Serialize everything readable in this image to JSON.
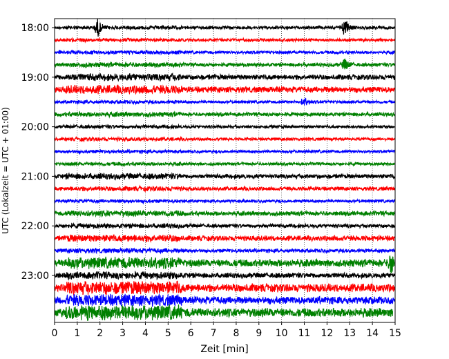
{
  "chart_data": {
    "type": "line",
    "subtype": "helicorder",
    "title": "",
    "xlabel": "Zeit  [min]",
    "ylabel": "UTC (Lokalzeit = UTC + 01:00)",
    "xlim": [
      0,
      15
    ],
    "x_ticks": [
      0,
      1,
      2,
      3,
      4,
      5,
      6,
      7,
      8,
      9,
      10,
      11,
      12,
      13,
      14,
      15
    ],
    "x_tick_labels": [
      "0",
      "1",
      "2",
      "3",
      "4",
      "5",
      "6",
      "7",
      "8",
      "9",
      "10",
      "11",
      "12",
      "13",
      "14",
      "15"
    ],
    "vertical_grid": "dotted",
    "row_interval_minutes": 15,
    "row_count": 24,
    "y_tick_labels": [
      "18:00",
      "19:00",
      "20:00",
      "21:00",
      "22:00",
      "23:00"
    ],
    "y_tick_rows": [
      0,
      4,
      8,
      12,
      16,
      20
    ],
    "trace_colors": [
      "#000000",
      "#ff0000",
      "#0000ff",
      "#008000"
    ],
    "trace_amplitudes": [
      0.2,
      0.2,
      0.2,
      0.25,
      0.35,
      0.4,
      0.2,
      0.25,
      0.2,
      0.2,
      0.2,
      0.2,
      0.3,
      0.25,
      0.2,
      0.3,
      0.25,
      0.35,
      0.25,
      0.5,
      0.35,
      0.55,
      0.5,
      0.6
    ],
    "events": [
      {
        "row": 0,
        "x": 1.9,
        "amplitude": 1.0
      },
      {
        "row": 0,
        "x": 12.8,
        "amplitude": 1.1
      },
      {
        "row": 3,
        "x": 12.8,
        "amplitude": 0.7
      },
      {
        "row": 6,
        "x": 11.0,
        "amplitude": 0.5
      },
      {
        "row": 19,
        "x": 14.85,
        "amplitude": 1.3
      }
    ],
    "last_row_end_x": 14.9
  }
}
